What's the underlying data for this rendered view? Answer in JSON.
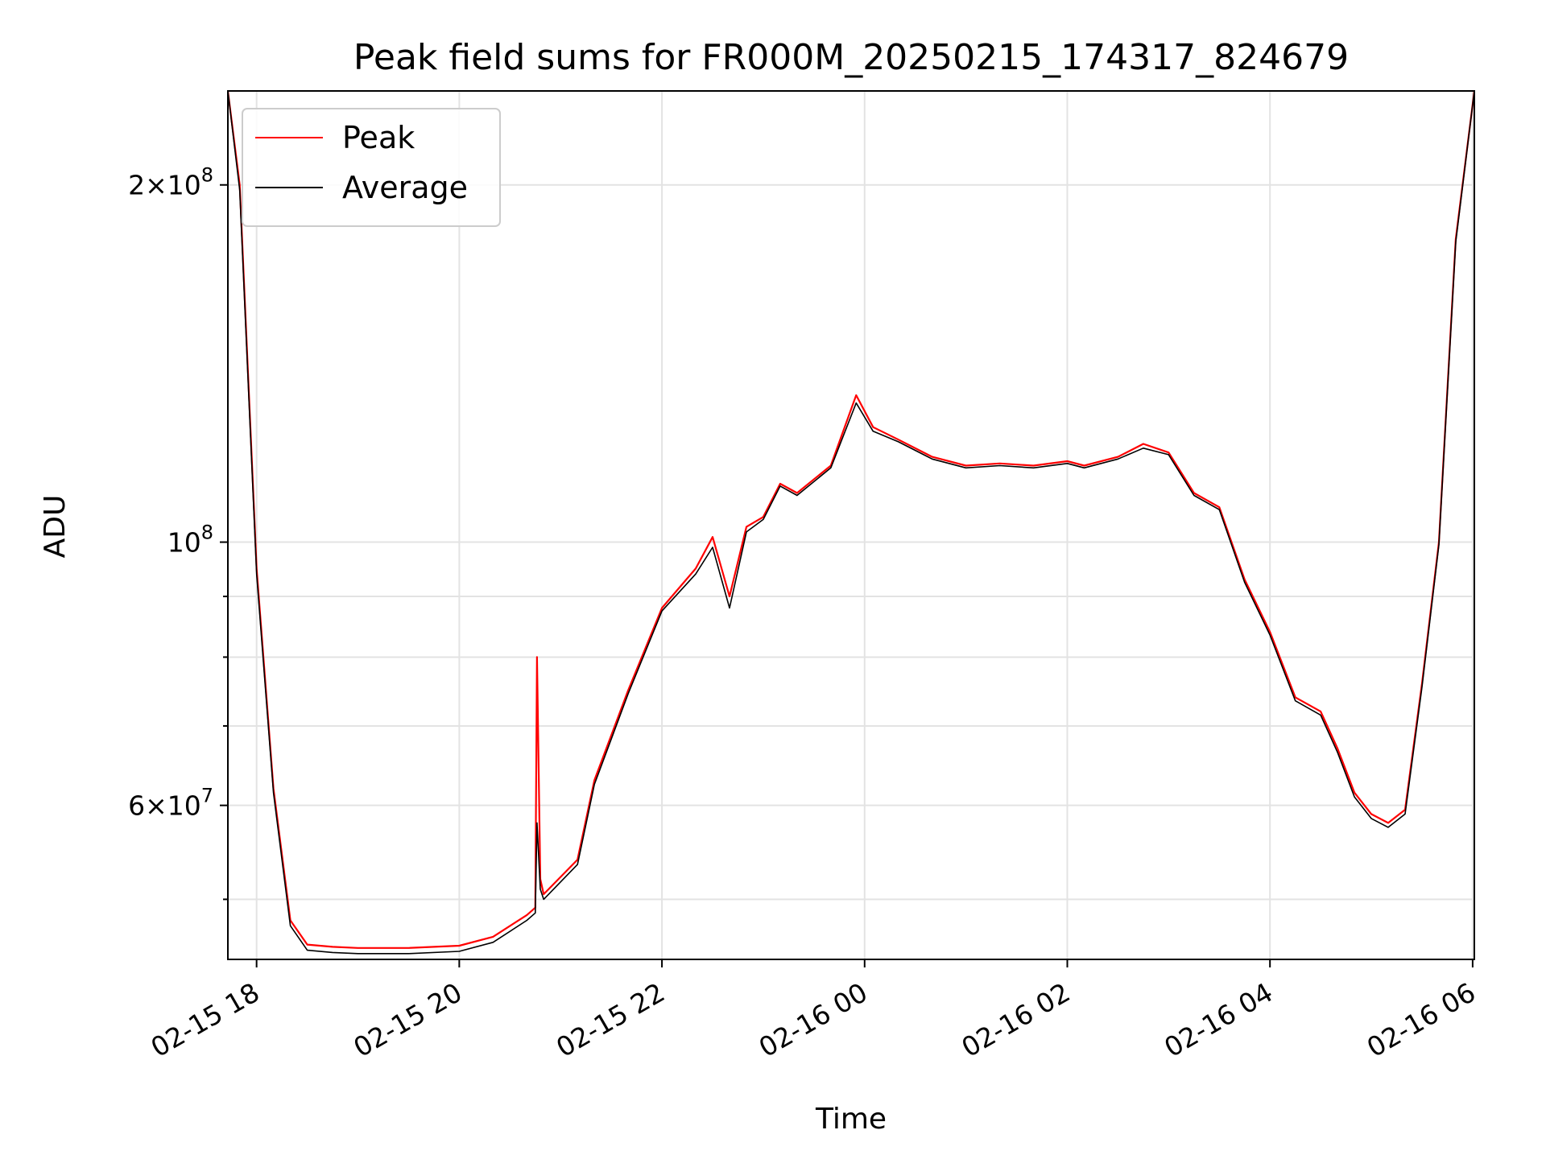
{
  "chart_data": {
    "type": "line",
    "title": "Peak field sums for FR000M_20250215_174317_824679",
    "xlabel": "Time",
    "ylabel": "ADU",
    "x_axis": {
      "type": "datetime",
      "range": [
        "02-15 17:43",
        "02-16 06:01"
      ],
      "ticks": [
        "02-15 18",
        "02-15 20",
        "02-15 22",
        "02-16 00",
        "02-16 02",
        "02-16 04",
        "02-16 06"
      ]
    },
    "y_axis": {
      "scale": "log",
      "range": [
        44500000,
        240000000
      ],
      "major_ticks": [
        {
          "value": 200000000,
          "mantissa": "2",
          "exponent": "8"
        },
        {
          "value": 100000000,
          "mantissa": "",
          "exponent": "8"
        },
        {
          "value": 60000000,
          "mantissa": "6",
          "exponent": "7"
        }
      ],
      "minor_ticks": [
        50000000,
        70000000,
        80000000,
        90000000
      ]
    },
    "grid": true,
    "legend": {
      "placement": "top-left",
      "entries": [
        "Peak",
        "Average"
      ]
    },
    "colors": {
      "Peak": "#ff0000",
      "Average": "#000000"
    },
    "series": [
      {
        "name": "Peak",
        "times": [
          "02-15 17:43",
          "02-15 17:50",
          "02-15 18:00",
          "02-15 18:10",
          "02-15 18:20",
          "02-15 18:30",
          "02-15 18:45",
          "02-15 19:00",
          "02-15 19:30",
          "02-15 20:00",
          "02-15 20:20",
          "02-15 20:40",
          "02-15 20:45",
          "02-15 20:46",
          "02-15 20:48",
          "02-15 20:50",
          "02-15 21:10",
          "02-15 21:20",
          "02-15 21:40",
          "02-15 22:00",
          "02-15 22:20",
          "02-15 22:30",
          "02-15 22:40",
          "02-15 22:50",
          "02-15 23:00",
          "02-15 23:10",
          "02-15 23:20",
          "02-15 23:40",
          "02-15 23:55",
          "02-16 00:05",
          "02-16 00:20",
          "02-16 00:40",
          "02-16 01:00",
          "02-16 01:20",
          "02-16 01:40",
          "02-16 02:00",
          "02-16 02:10",
          "02-16 02:30",
          "02-16 02:45",
          "02-16 03:00",
          "02-16 03:15",
          "02-16 03:30",
          "02-16 03:45",
          "02-16 04:00",
          "02-16 04:15",
          "02-16 04:30",
          "02-16 04:40",
          "02-16 04:50",
          "02-16 05:00",
          "02-16 05:10",
          "02-16 05:20",
          "02-16 05:30",
          "02-16 05:40",
          "02-16 05:50",
          "02-16 06:01"
        ],
        "values": [
          240000000,
          200000000,
          95000000,
          62000000,
          48000000,
          45800000,
          45600000,
          45500000,
          45500000,
          45700000,
          46500000,
          48500000,
          49200000,
          80000000,
          52000000,
          50500000,
          54000000,
          63000000,
          75000000,
          88000000,
          95000000,
          101000000,
          90000000,
          103000000,
          105000000,
          112000000,
          110000000,
          116000000,
          133000000,
          125000000,
          122000000,
          118000000,
          116000000,
          116500000,
          116000000,
          117000000,
          116000000,
          118000000,
          121000000,
          119000000,
          110000000,
          107000000,
          93000000,
          84000000,
          74000000,
          72000000,
          67000000,
          61500000,
          59000000,
          58000000,
          59500000,
          76000000,
          100000000,
          180000000,
          240000000
        ]
      },
      {
        "name": "Average",
        "times": [
          "02-15 17:43",
          "02-15 17:50",
          "02-15 18:00",
          "02-15 18:10",
          "02-15 18:20",
          "02-15 18:30",
          "02-15 18:45",
          "02-15 19:00",
          "02-15 19:30",
          "02-15 20:00",
          "02-15 20:20",
          "02-15 20:40",
          "02-15 20:45",
          "02-15 20:46",
          "02-15 20:48",
          "02-15 20:50",
          "02-15 21:10",
          "02-15 21:20",
          "02-15 21:40",
          "02-15 22:00",
          "02-15 22:20",
          "02-15 22:30",
          "02-15 22:40",
          "02-15 22:50",
          "02-15 23:00",
          "02-15 23:10",
          "02-15 23:20",
          "02-15 23:40",
          "02-15 23:55",
          "02-16 00:05",
          "02-16 00:20",
          "02-16 00:40",
          "02-16 01:00",
          "02-16 01:20",
          "02-16 01:40",
          "02-16 02:00",
          "02-16 02:10",
          "02-16 02:30",
          "02-16 02:45",
          "02-16 03:00",
          "02-16 03:15",
          "02-16 03:30",
          "02-16 03:45",
          "02-16 04:00",
          "02-16 04:15",
          "02-16 04:30",
          "02-16 04:40",
          "02-16 04:50",
          "02-16 05:00",
          "02-16 05:10",
          "02-16 05:20",
          "02-16 05:30",
          "02-16 05:40",
          "02-16 05:50",
          "02-16 06:01"
        ],
        "values": [
          240000000,
          198000000,
          94000000,
          61500000,
          47500000,
          45300000,
          45100000,
          45000000,
          45000000,
          45200000,
          46000000,
          48000000,
          48700000,
          58000000,
          51000000,
          50000000,
          53500000,
          62500000,
          74500000,
          87500000,
          94000000,
          99000000,
          88000000,
          102000000,
          104500000,
          111500000,
          109500000,
          115500000,
          131000000,
          124000000,
          121500000,
          117500000,
          115500000,
          116000000,
          115500000,
          116500000,
          115500000,
          117500000,
          120000000,
          118500000,
          109500000,
          106500000,
          92500000,
          83500000,
          73500000,
          71500000,
          66500000,
          61000000,
          58500000,
          57500000,
          59000000,
          75500000,
          99500000,
          179000000,
          240000000
        ]
      }
    ]
  }
}
